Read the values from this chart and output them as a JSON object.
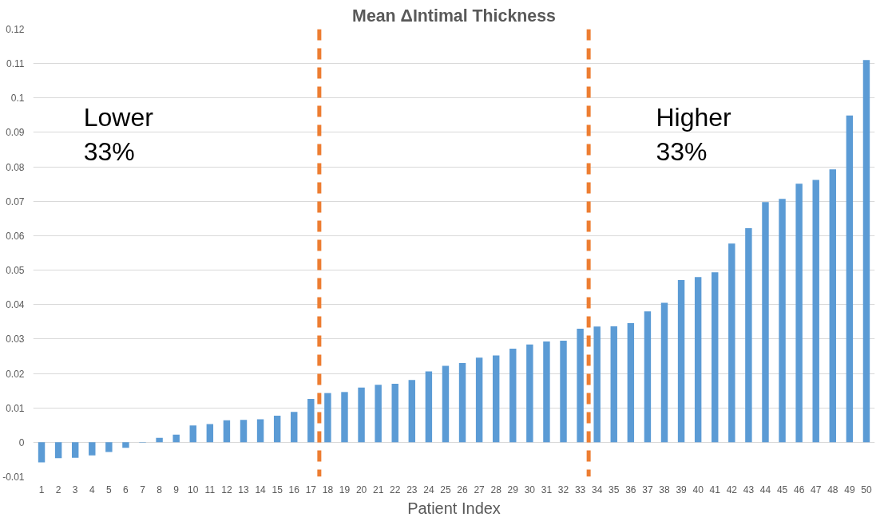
{
  "chart_data": {
    "type": "bar",
    "title": "Mean ΔIntimal Thickness",
    "xlabel": "Patient Index",
    "x": [
      1,
      2,
      3,
      4,
      5,
      6,
      7,
      8,
      9,
      10,
      11,
      12,
      13,
      14,
      15,
      16,
      17,
      18,
      19,
      20,
      21,
      22,
      23,
      24,
      25,
      26,
      27,
      28,
      29,
      30,
      31,
      32,
      33,
      34,
      35,
      36,
      37,
      38,
      39,
      40,
      41,
      42,
      43,
      44,
      45,
      46,
      47,
      48,
      49,
      50
    ],
    "series": [
      {
        "color": "#5b9bd5",
        "values": [
          -0.0058,
          -0.0046,
          -0.0045,
          -0.0038,
          -0.0028,
          -0.0016,
          -0.0001,
          0.0013,
          0.0022,
          0.0049,
          0.0053,
          0.0064,
          0.0065,
          0.0067,
          0.0077,
          0.0088,
          0.0126,
          0.0143,
          0.0146,
          0.0159,
          0.0167,
          0.017,
          0.0181,
          0.0206,
          0.0222,
          0.023,
          0.0246,
          0.0252,
          0.0272,
          0.0284,
          0.0293,
          0.0295,
          0.033,
          0.0336,
          0.0337,
          0.0346,
          0.038,
          0.0405,
          0.0471,
          0.048,
          0.0494,
          0.0577,
          0.0622,
          0.0698,
          0.0707,
          0.0751,
          0.0762,
          0.0793,
          0.0949,
          0.111
        ]
      }
    ],
    "xlim": [
      0.5,
      50.5
    ],
    "xticks": [
      1,
      2,
      3,
      4,
      5,
      6,
      7,
      8,
      9,
      10,
      11,
      12,
      13,
      14,
      15,
      16,
      17,
      18,
      19,
      20,
      21,
      22,
      23,
      24,
      25,
      26,
      27,
      28,
      29,
      30,
      31,
      32,
      33,
      34,
      35,
      36,
      37,
      38,
      39,
      40,
      41,
      42,
      43,
      44,
      45,
      46,
      47,
      48,
      49,
      50
    ],
    "ylim": [
      -0.01,
      0.12
    ],
    "yticks": [
      -0.01,
      0,
      0.01,
      0.02,
      0.03,
      0.04,
      0.05,
      0.06,
      0.07,
      0.08,
      0.09,
      0.1,
      0.11,
      0.12
    ],
    "grid": "y",
    "ref_lines": [
      {
        "axis": "x",
        "value": 17.5,
        "color": "#ed7d31",
        "line_style": "dashed"
      },
      {
        "axis": "x",
        "value": 33.5,
        "color": "#ed7d31",
        "line_style": "dashed"
      }
    ],
    "annotations": [
      "Lower\n33%",
      "Higher\n33%"
    ]
  }
}
